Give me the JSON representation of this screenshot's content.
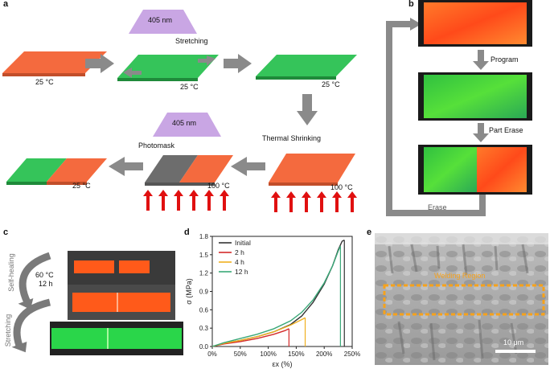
{
  "colors": {
    "orange": "#f46a3e",
    "green": "#35c45a",
    "gray_tile": "#6d6d6d",
    "arrow_gray": "#8a8a8a",
    "uv_purple": "#c9a6e4",
    "heat_red": "#e01010"
  },
  "panel_a": {
    "label": "a",
    "uv_top": "405 nm",
    "stretching": "Stretching",
    "temp1": "25 °C",
    "temp2": "25 °C",
    "temp3": "25 °C",
    "thermal": "Thermal Shrinking",
    "temp4": "100 °C",
    "uv_bottom": "405 nm",
    "photomask": "Photomask",
    "temp5": "100 °C",
    "temp6": "25 °C"
  },
  "panel_b": {
    "label": "b",
    "program": "Program",
    "part_erase": "Part Erase",
    "erase": "Erase"
  },
  "panel_c": {
    "label": "c",
    "self_healing": "Self-healing",
    "cond_temp": "60 °C",
    "cond_time": "12 h",
    "stretching": "Stretching"
  },
  "panel_d": {
    "label": "d"
  },
  "panel_e": {
    "label": "e",
    "region": "Welding Region",
    "scale": "10 μm"
  },
  "chart_data": {
    "type": "line",
    "title": "",
    "xlabel": "εx (%)",
    "ylabel": "σ (MPa)",
    "xlim": [
      0,
      250
    ],
    "ylim": [
      0,
      1.8
    ],
    "xticks": [
      0,
      50,
      100,
      150,
      200,
      250
    ],
    "xtick_labels": [
      "0%",
      "50%",
      "100%",
      "150%",
      "200%",
      "250%"
    ],
    "yticks": [
      0,
      0.3,
      0.6,
      0.9,
      1.2,
      1.5,
      1.8
    ],
    "ytick_labels": [
      "0.0",
      "0.3",
      "0.6",
      "0.9",
      "1.2",
      "1.5",
      "1.8"
    ],
    "legend_position": "top-left",
    "series": [
      {
        "name": "Initial",
        "color": "#333333",
        "x": [
          0,
          20,
          50,
          80,
          110,
          140,
          160,
          180,
          200,
          215,
          225,
          232,
          236
        ],
        "y": [
          0,
          0.05,
          0.1,
          0.16,
          0.24,
          0.36,
          0.5,
          0.72,
          1.02,
          1.32,
          1.58,
          1.72,
          1.74
        ],
        "break_x": 236
      },
      {
        "name": "2 h",
        "color": "#d42a2a",
        "x": [
          0,
          20,
          50,
          80,
          110,
          130,
          137
        ],
        "y": [
          0,
          0.04,
          0.08,
          0.13,
          0.2,
          0.26,
          0.29
        ],
        "break_x": 137
      },
      {
        "name": "4 h",
        "color": "#f0b020",
        "x": [
          0,
          20,
          50,
          80,
          110,
          140,
          160,
          166
        ],
        "y": [
          0,
          0.05,
          0.1,
          0.16,
          0.24,
          0.35,
          0.44,
          0.47
        ],
        "break_x": 166
      },
      {
        "name": "12 h",
        "color": "#3aa878",
        "x": [
          0,
          20,
          50,
          80,
          110,
          140,
          160,
          180,
          200,
          215,
          225,
          229
        ],
        "y": [
          0,
          0.06,
          0.13,
          0.2,
          0.29,
          0.42,
          0.56,
          0.76,
          1.04,
          1.32,
          1.56,
          1.64
        ],
        "break_x": 229
      }
    ]
  }
}
